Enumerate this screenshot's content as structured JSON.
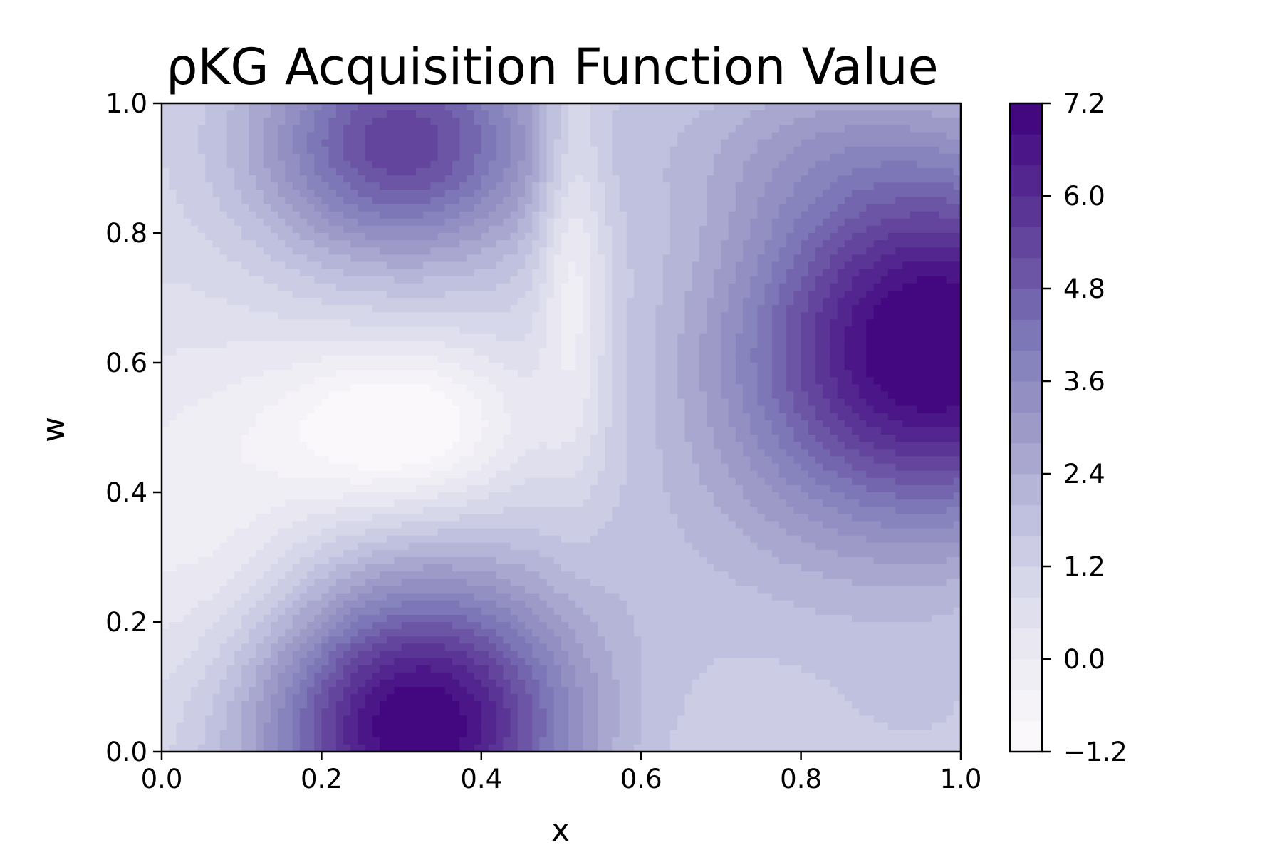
{
  "chart_data": {
    "type": "contour",
    "title": "ρKG Acquisition Function Value",
    "xlabel": "x",
    "ylabel": "w",
    "xlim": [
      0.0,
      1.0
    ],
    "ylim": [
      0.0,
      1.0
    ],
    "x_ticks": [
      "0.0",
      "0.2",
      "0.4",
      "0.6",
      "0.8",
      "1.0"
    ],
    "y_ticks": [
      "0.0",
      "0.2",
      "0.4",
      "0.6",
      "0.8",
      "1.0"
    ],
    "colorbar": {
      "range": [
        -1.2,
        7.2
      ],
      "ticks": [
        7.2,
        6.0,
        4.8,
        3.6,
        2.4,
        1.2,
        0.0,
        -1.2
      ],
      "tick_labels": [
        "7.2",
        "6.0",
        "4.8",
        "3.6",
        "2.4",
        "1.2",
        "0.0",
        "−1.2"
      ],
      "levels": 21,
      "colormap": "Purples",
      "color_low": "#fcfbfd",
      "color_high": "#3f007d"
    },
    "features": [
      {
        "kind": "maximum",
        "x": 0.32,
        "w": 0.05,
        "value": 7.0
      },
      {
        "kind": "maximum",
        "x": 0.95,
        "w": 0.62,
        "value": 7.0
      },
      {
        "kind": "local-max",
        "x": 0.3,
        "w": 0.93,
        "value": 6.0
      },
      {
        "kind": "minimum",
        "x": 0.3,
        "w": 0.5,
        "value": -1.0
      },
      {
        "kind": "ridge-low",
        "x": 0.51,
        "w": 0.75,
        "value": -0.3
      }
    ],
    "grid": false,
    "legend": "colorbar-right"
  }
}
